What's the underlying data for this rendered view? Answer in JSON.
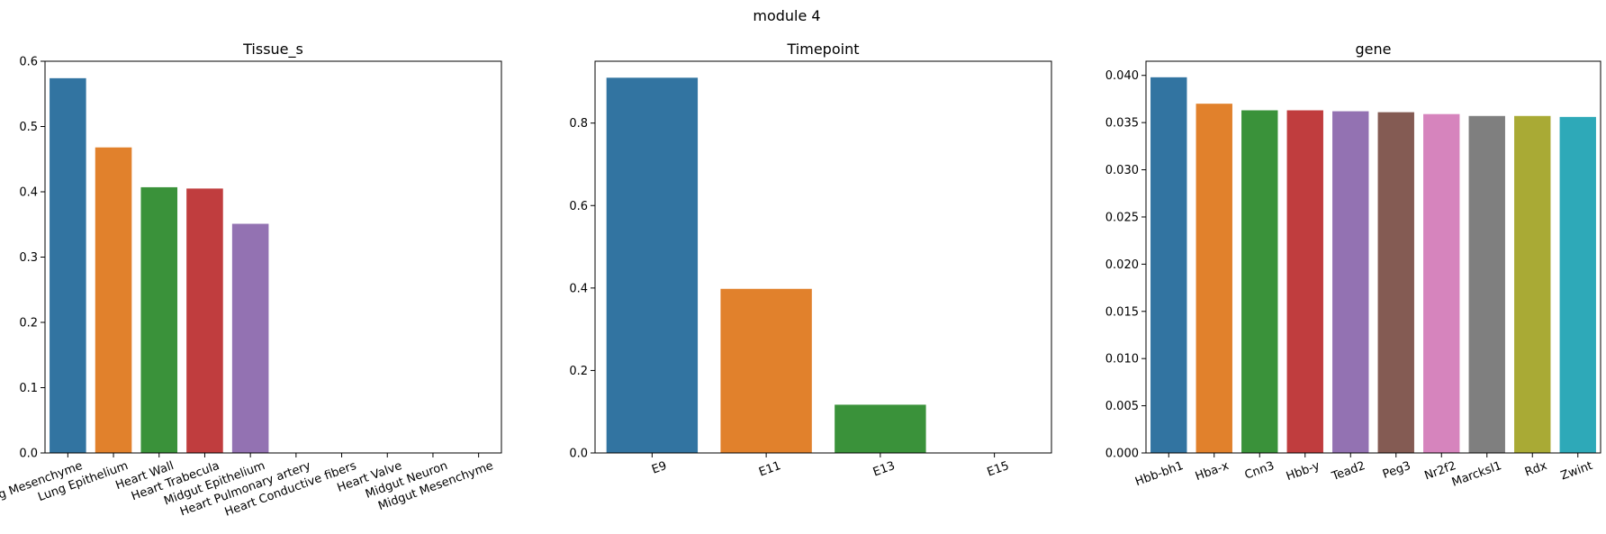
{
  "figure": {
    "title": "module 4"
  },
  "chart_data": [
    {
      "type": "bar",
      "title": "Tissue_s",
      "xlabel": "",
      "ylabel": "",
      "ylim": [
        0,
        0.6
      ],
      "yticks": [
        "0.0",
        "0.1",
        "0.2",
        "0.3",
        "0.4",
        "0.5",
        "0.6"
      ],
      "categories": [
        "Lung Mesenchyme",
        "Lung Epithelium",
        "Heart Wall",
        "Heart Trabecula",
        "Midgut Epithelium",
        "Heart Pulmonary artery",
        "Heart Conductive fibers",
        "Heart Valve",
        "Midgut Neuron",
        "Midgut Mesenchyme"
      ],
      "values": [
        0.574,
        0.468,
        0.407,
        0.405,
        0.351,
        0,
        0,
        0,
        0,
        0
      ],
      "colors": [
        "#3274a1",
        "#e1812c",
        "#3a923a",
        "#c03d3e",
        "#9372b2",
        "#845b53",
        "#d684bd",
        "#7f7f7f",
        "#a9aa35",
        "#2ea9b8"
      ],
      "grid": false,
      "xtick_rotation": -20
    },
    {
      "type": "bar",
      "title": "Timepoint",
      "xlabel": "",
      "ylabel": "",
      "ylim": [
        0,
        0.95
      ],
      "yticks": [
        "0.0",
        "0.2",
        "0.4",
        "0.6",
        "0.8"
      ],
      "categories": [
        "E9",
        "E11",
        "E13",
        "E15"
      ],
      "values": [
        0.91,
        0.398,
        0.117,
        0
      ],
      "colors": [
        "#3274a1",
        "#e1812c",
        "#3a923a",
        "#c03d3e"
      ],
      "grid": false,
      "xtick_rotation": -20
    },
    {
      "type": "bar",
      "title": "gene",
      "xlabel": "",
      "ylabel": "",
      "ylim": [
        0,
        0.0415
      ],
      "yticks": [
        "0.000",
        "0.005",
        "0.010",
        "0.015",
        "0.020",
        "0.025",
        "0.030",
        "0.035",
        "0.040"
      ],
      "categories": [
        "Hbb-bh1",
        "Hba-x",
        "Cnn3",
        "Hbb-y",
        "Tead2",
        "Peg3",
        "Nr2f2",
        "Marcksl1",
        "Rdx",
        "Zwint"
      ],
      "values": [
        0.0398,
        0.037,
        0.0363,
        0.0363,
        0.0362,
        0.0361,
        0.0359,
        0.0357,
        0.0357,
        0.0356
      ],
      "colors": [
        "#3274a1",
        "#e1812c",
        "#3a923a",
        "#c03d3e",
        "#9372b2",
        "#845b53",
        "#d684bd",
        "#7f7f7f",
        "#a9aa35",
        "#2ea9b8"
      ],
      "grid": false,
      "xtick_rotation": -20
    }
  ]
}
